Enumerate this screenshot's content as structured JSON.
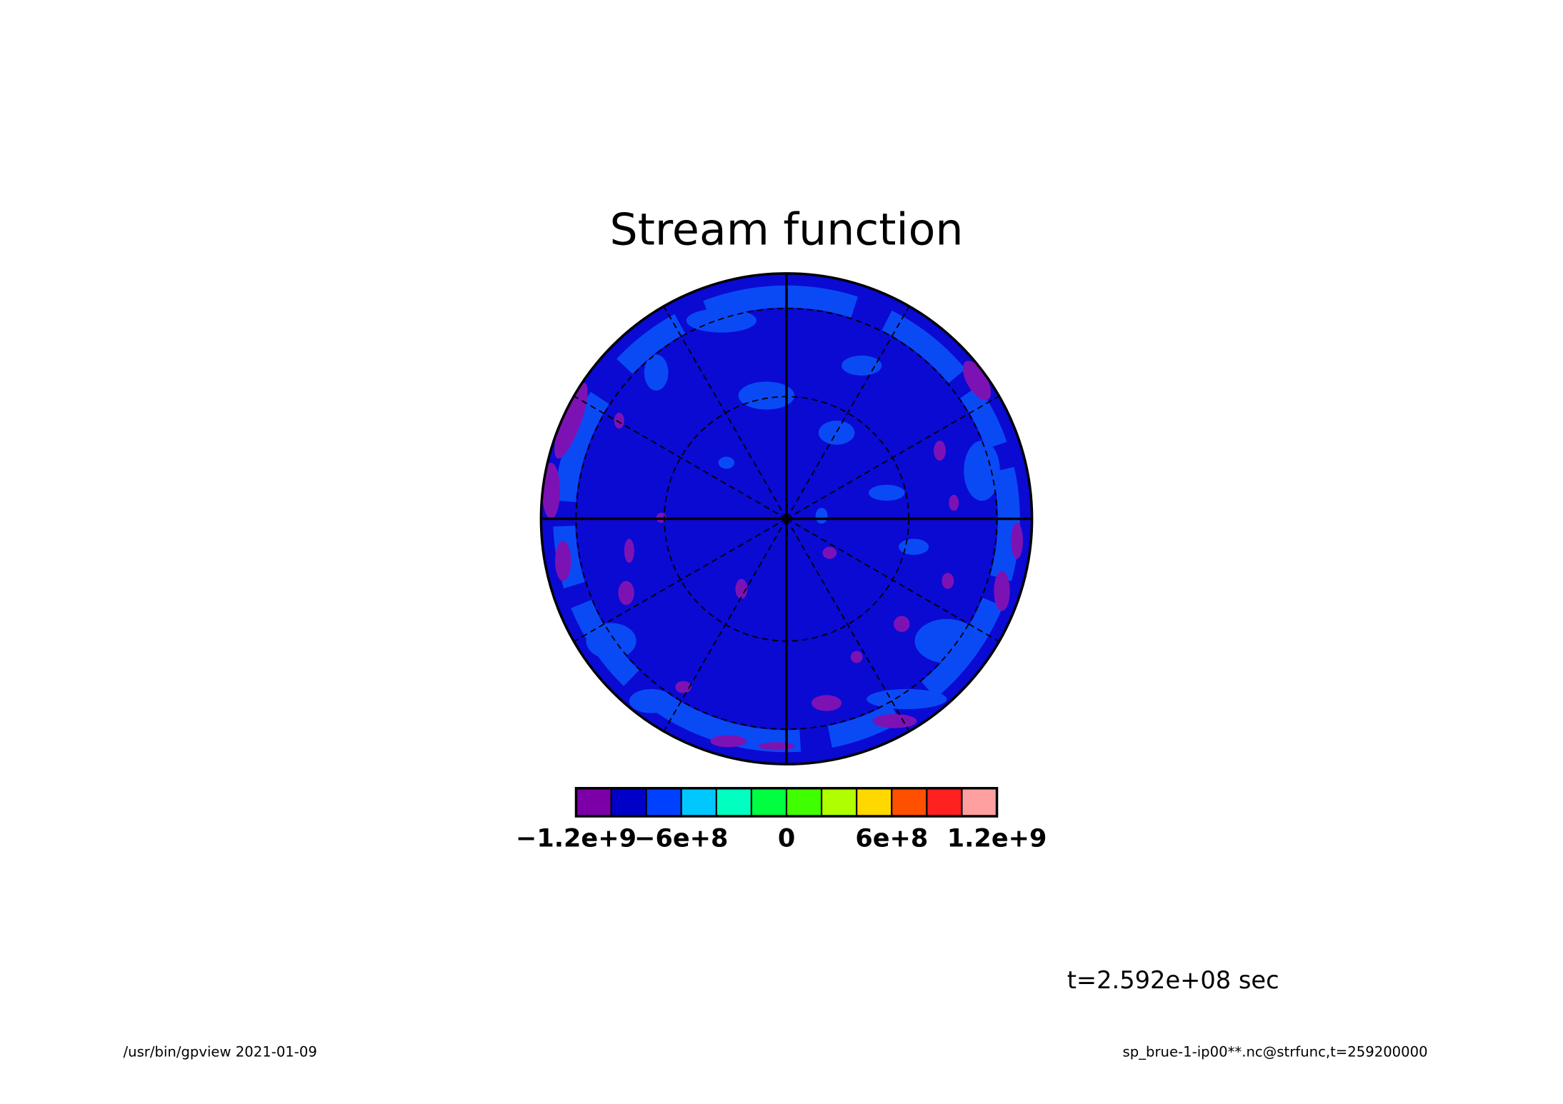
{
  "chart_data": {
    "type": "colorbar",
    "title": "Stream function",
    "annotation": "t=2.592e+08 sec",
    "footer_left": "/usr/bin/gpview  2021-01-09",
    "footer_right": "sp_brue-1-ip00**.nc@strfunc,t=259200000",
    "colors": [
      "#7b00a8",
      "#0000c8",
      "#0040ff",
      "#00c8ff",
      "#00ffc0",
      "#00ff40",
      "#40ff00",
      "#b0ff00",
      "#ffd800",
      "#ff5000",
      "#ff2020",
      "#ffa0a0"
    ],
    "xlim": [
      -1200000000,
      1200000000
    ],
    "xticks": [
      {
        "value": -1200000000,
        "label": "−1.2e+9"
      },
      {
        "value": -600000000,
        "label": "−6e+8"
      },
      0,
      {
        "value": 600000000,
        "label": "6e+8"
      },
      {
        "value": 1200000000,
        "label": "1.2e+9"
      }
    ]
  }
}
